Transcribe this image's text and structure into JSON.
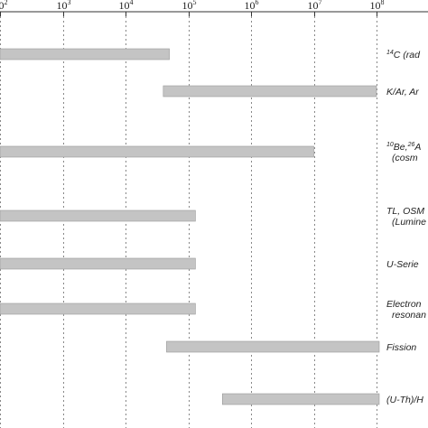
{
  "chart_data": {
    "type": "bar",
    "orientation": "horizontal",
    "x_scale": "log",
    "xlim": [
      100,
      100000000
    ],
    "grid": "vertical-dotted",
    "ticks": [
      {
        "value": 100,
        "base": "10",
        "exp": "2"
      },
      {
        "value": 1000,
        "base": "10",
        "exp": "3"
      },
      {
        "value": 10000,
        "base": "10",
        "exp": "4"
      },
      {
        "value": 100000,
        "base": "10",
        "exp": "5"
      },
      {
        "value": 1000000,
        "base": "10",
        "exp": "6"
      },
      {
        "value": 10000000,
        "base": "10",
        "exp": "7"
      },
      {
        "value": 100000000,
        "base": "10",
        "exp": "8"
      }
    ],
    "bar_color": "#c4c4c4",
    "series": [
      {
        "label_lines": [
          [
            {
              "t": "14",
              "sup": true
            },
            {
              "t": "C (rad"
            }
          ]
        ],
        "range": [
          100,
          50000
        ]
      },
      {
        "label_lines": [
          [
            {
              "t": "K/Ar, Ar"
            }
          ]
        ],
        "range": [
          40000,
          100000000
        ]
      },
      {
        "label_lines": [
          [
            {
              "t": "10",
              "sup": true
            },
            {
              "t": "Be,"
            },
            {
              "t": "26",
              "sup": true
            },
            {
              "t": "A"
            }
          ],
          [
            {
              "t": "(cosm"
            }
          ]
        ],
        "range": [
          100,
          10000000
        ]
      },
      {
        "label_lines": [
          [
            {
              "t": "TL, OSM"
            }
          ],
          [
            {
              "t": "(Lumine"
            }
          ]
        ],
        "range": [
          100,
          130000
        ]
      },
      {
        "label_lines": [
          [
            {
              "t": "U-Serie"
            }
          ]
        ],
        "range": [
          100,
          130000
        ]
      },
      {
        "label_lines": [
          [
            {
              "t": "Electron"
            }
          ],
          [
            {
              "t": "resonan"
            }
          ]
        ],
        "range": [
          100,
          130000
        ]
      },
      {
        "label_lines": [
          [
            {
              "t": "Fission"
            }
          ]
        ],
        "range": [
          45000,
          120000000
        ]
      },
      {
        "label_lines": [
          [
            {
              "t": "(U-Th)/H"
            }
          ]
        ],
        "range": [
          350000,
          120000000
        ]
      }
    ]
  }
}
